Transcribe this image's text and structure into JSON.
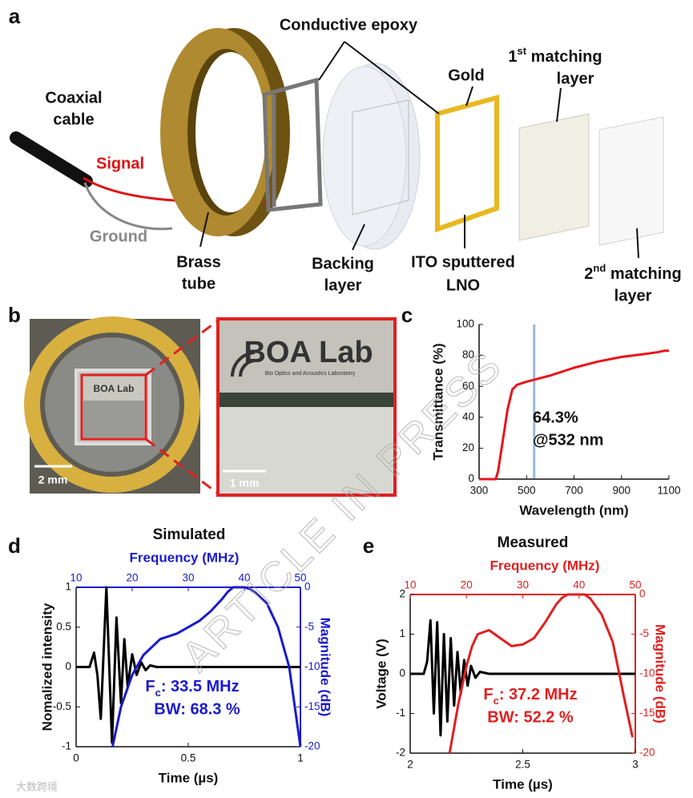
{
  "panels": [
    "a",
    "b",
    "c",
    "d",
    "e"
  ],
  "diagram": {
    "conductive_epoxy": "Conductive epoxy",
    "coaxial_cable": [
      "Coaxial",
      "cable"
    ],
    "signal": "Signal",
    "ground": "Ground",
    "brass_tube": [
      "Brass",
      "tube"
    ],
    "backing_layer": [
      "Backing",
      "layer"
    ],
    "gold": "Gold",
    "ito_lno": [
      "ITO sputtered",
      "LNO"
    ],
    "matching1": [
      "1",
      "st",
      " matching",
      "layer"
    ],
    "matching2": [
      "2",
      "nd",
      " matching",
      "layer"
    ]
  },
  "photos": {
    "left_logo": "BOA Lab",
    "left_scale": "2 mm",
    "right_logo": "BOA Lab",
    "right_sub": "Bio Optics and Acoustics Laboratory",
    "right_scale": "1 mm"
  },
  "watermark": "ARTICLE IN PRESS",
  "source_mark": "大数跨境",
  "chart_data": [
    {
      "type": "line",
      "xlabel": "Wavelength (nm)",
      "ylabel": "Transmittance (%)",
      "xlim": [
        300,
        1100
      ],
      "xticks": [
        300,
        500,
        700,
        900,
        1100
      ],
      "ylim": [
        0,
        100
      ],
      "yticks": [
        0,
        20,
        40,
        60,
        80,
        100
      ],
      "series": [
        {
          "color": "#e8141c",
          "x": [
            300,
            370,
            380,
            400,
            420,
            440,
            460,
            480,
            500,
            532,
            600,
            700,
            800,
            900,
            1000,
            1050,
            1080,
            1100
          ],
          "values": [
            0,
            0,
            5,
            25,
            45,
            58,
            61,
            62,
            63,
            64.3,
            67,
            72,
            76,
            79,
            81,
            82,
            83,
            83
          ]
        }
      ],
      "vline": {
        "x": 532,
        "color": "#9ab8dc"
      },
      "annotation": [
        "64.3%",
        "@532 nm"
      ]
    },
    {
      "type": "line",
      "title": "Simulated",
      "xlabel": "Time (µs)",
      "ylabel": "Nomalized intensity",
      "x2label": "Frequency (MHz)",
      "y2label": "Magnitude (dB)",
      "xlim": [
        0,
        1
      ],
      "xticks": [
        0,
        0.5,
        1
      ],
      "ylim": [
        -1,
        1
      ],
      "yticks": [
        -1,
        -0.5,
        0,
        0.5,
        1
      ],
      "x2lim": [
        10,
        50
      ],
      "x2ticks": [
        10,
        20,
        30,
        40,
        50
      ],
      "y2lim": [
        -20,
        0
      ],
      "y2ticks": [
        -20,
        -15,
        -10,
        -5,
        0
      ],
      "axis2_color": "#1a1acc",
      "series": [
        {
          "color": "#000000",
          "x": [
            0,
            0.06,
            0.08,
            0.095,
            0.11,
            0.135,
            0.16,
            0.18,
            0.2,
            0.215,
            0.23,
            0.25,
            0.27,
            0.29,
            0.31,
            0.33,
            0.36,
            0.4,
            1
          ],
          "values": [
            0,
            0,
            0.18,
            -0.1,
            -0.65,
            1,
            -0.95,
            0.62,
            -0.45,
            0.35,
            -0.25,
            0.16,
            -0.1,
            0.06,
            -0.04,
            0.02,
            0,
            0,
            0
          ]
        },
        {
          "color": "#1a1acc",
          "axis": "y2",
          "x": [
            16.5,
            18,
            20,
            22,
            25,
            28,
            30,
            32,
            34,
            36,
            37,
            38,
            40,
            41,
            42,
            44,
            46,
            48,
            50
          ],
          "values": [
            -20,
            -15,
            -11,
            -8.5,
            -6.5,
            -5.8,
            -5,
            -4.2,
            -3,
            -1.5,
            -0.6,
            0,
            0,
            -0.2,
            -0.7,
            -2,
            -5,
            -10,
            -20
          ]
        }
      ],
      "annotation": {
        "fc": [
          "F",
          "c",
          ": 33.5 MHz"
        ],
        "bw": "BW: 68.3 %"
      }
    },
    {
      "type": "line",
      "title": "Measured",
      "xlabel": "Time (µs)",
      "ylabel": "Voltage (V)",
      "x2label": "Frequency (MHz)",
      "y2label": "Magnitude (dB)",
      "xlim": [
        2,
        3
      ],
      "xticks": [
        2,
        2.5,
        3
      ],
      "ylim": [
        -2,
        2
      ],
      "yticks": [
        -2,
        -1,
        0,
        1,
        2
      ],
      "x2lim": [
        10,
        50
      ],
      "x2ticks": [
        10,
        20,
        30,
        40,
        50
      ],
      "y2lim": [
        -20,
        0
      ],
      "y2ticks": [
        -20,
        -15,
        -10,
        -5,
        0
      ],
      "axis2_color": "#e02020",
      "series": [
        {
          "color": "#000000",
          "x": [
            2,
            2.06,
            2.075,
            2.09,
            2.105,
            2.12,
            2.135,
            2.15,
            2.165,
            2.18,
            2.195,
            2.21,
            2.225,
            2.24,
            2.255,
            2.27,
            2.29,
            2.31,
            2.35,
            3
          ],
          "values": [
            0,
            0,
            0.3,
            1.35,
            -1.0,
            1.3,
            -1.55,
            1.0,
            -1.2,
            0.9,
            -0.8,
            0.55,
            -0.5,
            0.35,
            -0.3,
            0.2,
            -0.1,
            0.05,
            0,
            0
          ]
        },
        {
          "color": "#e02020",
          "axis": "y2",
          "x": [
            17,
            18.5,
            20,
            21,
            22,
            24,
            26,
            28,
            30,
            32,
            34,
            36,
            37,
            38,
            39,
            40,
            41,
            42,
            44,
            46,
            48,
            49.5
          ],
          "values": [
            -20,
            -14,
            -9,
            -6.5,
            -5,
            -4.5,
            -5.5,
            -6.5,
            -6.3,
            -5.5,
            -3.5,
            -1.2,
            -0.4,
            0,
            0,
            0,
            0,
            -0.5,
            -2.5,
            -6,
            -13,
            -18
          ]
        }
      ],
      "annotation": {
        "fc": [
          "F",
          "c",
          ": 37.2 MHz"
        ],
        "bw": "BW: 52.2 %"
      }
    }
  ]
}
